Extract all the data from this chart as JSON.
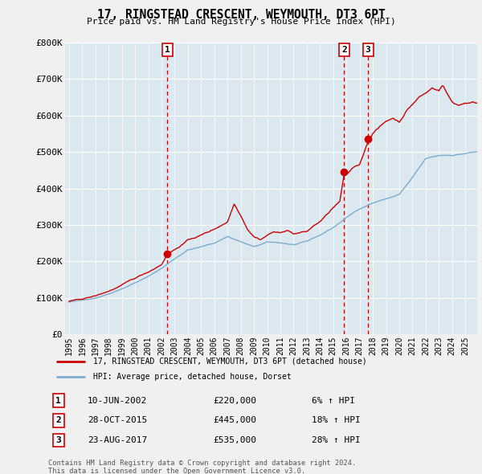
{
  "title": "17, RINGSTEAD CRESCENT, WEYMOUTH, DT3 6PT",
  "subtitle": "Price paid vs. HM Land Registry's House Price Index (HPI)",
  "legend_label_red": "17, RINGSTEAD CRESCENT, WEYMOUTH, DT3 6PT (detached house)",
  "legend_label_blue": "HPI: Average price, detached house, Dorset",
  "footer1": "Contains HM Land Registry data © Crown copyright and database right 2024.",
  "footer2": "This data is licensed under the Open Government Licence v3.0.",
  "transactions": [
    {
      "num": 1,
      "date": "10-JUN-2002",
      "price": 220000,
      "pct": "6%",
      "year": 2002.44
    },
    {
      "num": 2,
      "date": "28-OCT-2015",
      "price": 445000,
      "pct": "18%",
      "year": 2015.83
    },
    {
      "num": 3,
      "date": "23-AUG-2017",
      "price": 535000,
      "pct": "28%",
      "year": 2017.64
    }
  ],
  "ylim": [
    0,
    800000
  ],
  "red_color": "#cc0000",
  "blue_color": "#7aadcf",
  "vline_color": "#cc0000",
  "bg_plot": "#dce8f0",
  "bg_fig": "#f0f0f0",
  "grid_color": "#ffffff"
}
